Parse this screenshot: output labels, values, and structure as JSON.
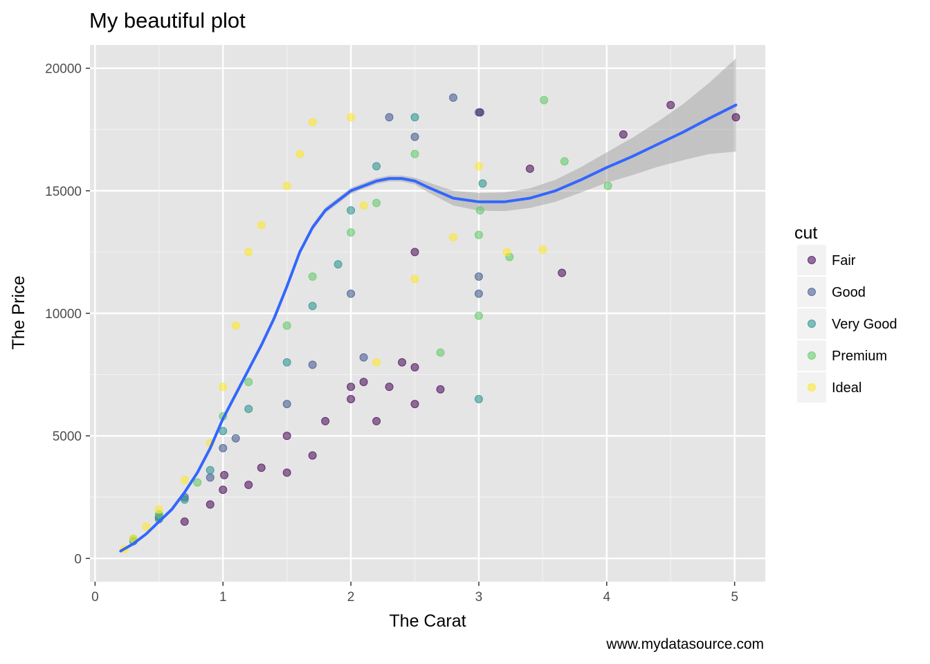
{
  "chart_data": {
    "type": "scatter",
    "title": "My beautiful plot",
    "xlabel": "The Carat",
    "ylabel": "The Price",
    "caption": "www.mydatasource.com",
    "xlim": [
      -0.04,
      5.24
    ],
    "ylim": [
      -950,
      20950
    ],
    "x_ticks": [
      0,
      1,
      2,
      3,
      4,
      5
    ],
    "y_ticks": [
      0,
      5000,
      10000,
      15000,
      20000
    ],
    "x_tick_labels": [
      "0",
      "1",
      "2",
      "3",
      "4",
      "5"
    ],
    "y_tick_labels": [
      "0",
      "5000",
      "10000",
      "15000",
      "20000"
    ],
    "grid": true,
    "legend": {
      "title": "cut",
      "position": "right",
      "entries": [
        "Fair",
        "Good",
        "Very Good",
        "Premium",
        "Ideal"
      ]
    },
    "colors": {
      "Fair": "#440154",
      "Good": "#3b528b",
      "Very Good": "#21908c",
      "Premium": "#5dc863",
      "Ideal": "#fde725",
      "smooth": "#3366ff",
      "band": "#999999",
      "panel": "#e5e5e5"
    },
    "series": [
      {
        "name": "Fair",
        "x": [
          0.7,
          0.9,
          1.0,
          1.01,
          1.2,
          1.3,
          1.5,
          1.5,
          1.7,
          1.8,
          2.0,
          2.0,
          2.1,
          2.2,
          2.3,
          2.4,
          2.5,
          2.5,
          2.5,
          2.7,
          3.01,
          3.4,
          3.65,
          4.13,
          4.5,
          5.01
        ],
        "y": [
          1500,
          2200,
          2800,
          3400,
          3000,
          3700,
          5000,
          3500,
          4200,
          5600,
          6500,
          7000,
          7200,
          5600,
          7000,
          8000,
          7800,
          12500,
          6300,
          6900,
          18200,
          15900,
          11650,
          17300,
          18500,
          18000
        ]
      },
      {
        "name": "Good",
        "x": [
          0.5,
          0.7,
          0.9,
          1.0,
          1.1,
          1.5,
          1.7,
          2.0,
          2.1,
          2.3,
          2.5,
          2.8,
          3.0,
          3.0,
          3.0
        ],
        "y": [
          1700,
          2500,
          3300,
          4500,
          4900,
          6300,
          7900,
          10800,
          8200,
          18000,
          17200,
          18800,
          10800,
          11500,
          18200
        ]
      },
      {
        "name": "Very Good",
        "x": [
          0.3,
          0.5,
          0.7,
          0.9,
          1.0,
          1.2,
          1.5,
          1.7,
          1.9,
          2.0,
          2.2,
          2.5,
          3.0,
          3.03
        ],
        "y": [
          700,
          1600,
          2400,
          3600,
          5200,
          6100,
          8000,
          10300,
          12000,
          14200,
          16000,
          18000,
          6500,
          15300
        ]
      },
      {
        "name": "Premium",
        "x": [
          0.3,
          0.5,
          0.8,
          1.0,
          1.2,
          1.5,
          1.7,
          2.0,
          2.2,
          2.5,
          2.7,
          3.0,
          3.0,
          3.01,
          3.24,
          3.51,
          3.67,
          4.01
        ],
        "y": [
          800,
          1800,
          3100,
          5800,
          7200,
          9500,
          11500,
          13300,
          14500,
          16500,
          8400,
          13200,
          9900,
          14200,
          12300,
          18700,
          16200,
          15200
        ]
      },
      {
        "name": "Ideal",
        "x": [
          0.23,
          0.3,
          0.4,
          0.5,
          0.7,
          0.9,
          1.0,
          1.1,
          1.2,
          1.3,
          1.5,
          1.6,
          1.7,
          2.0,
          2.1,
          2.2,
          2.5,
          2.8,
          3.0,
          3.22,
          3.5
        ],
        "y": [
          380,
          800,
          1300,
          2000,
          3200,
          4700,
          7000,
          9500,
          12500,
          13600,
          15200,
          16500,
          17800,
          18000,
          14400,
          8000,
          11400,
          13100,
          16000,
          12500,
          12600
        ]
      }
    ],
    "smooth": {
      "x": [
        0.2,
        0.3,
        0.4,
        0.5,
        0.6,
        0.7,
        0.8,
        0.9,
        1.0,
        1.1,
        1.2,
        1.3,
        1.4,
        1.5,
        1.6,
        1.7,
        1.8,
        1.9,
        2.0,
        2.1,
        2.2,
        2.3,
        2.4,
        2.5,
        2.6,
        2.8,
        3.0,
        3.2,
        3.4,
        3.6,
        3.8,
        4.0,
        4.2,
        4.4,
        4.6,
        4.8,
        5.01
      ],
      "y": [
        300,
        600,
        1000,
        1500,
        2000,
        2700,
        3500,
        4500,
        5700,
        6700,
        7700,
        8700,
        9800,
        11100,
        12500,
        13500,
        14200,
        14600,
        15000,
        15200,
        15400,
        15500,
        15500,
        15400,
        15150,
        14700,
        14550,
        14550,
        14700,
        15000,
        15450,
        15950,
        16400,
        16900,
        17400,
        17950,
        18500
      ],
      "band_half_width": [
        30,
        40,
        50,
        60,
        70,
        80,
        90,
        100,
        110,
        120,
        120,
        120,
        120,
        120,
        120,
        120,
        120,
        120,
        120,
        120,
        120,
        120,
        120,
        140,
        200,
        300,
        360,
        380,
        400,
        450,
        520,
        620,
        760,
        920,
        1150,
        1450,
        1900
      ]
    }
  }
}
